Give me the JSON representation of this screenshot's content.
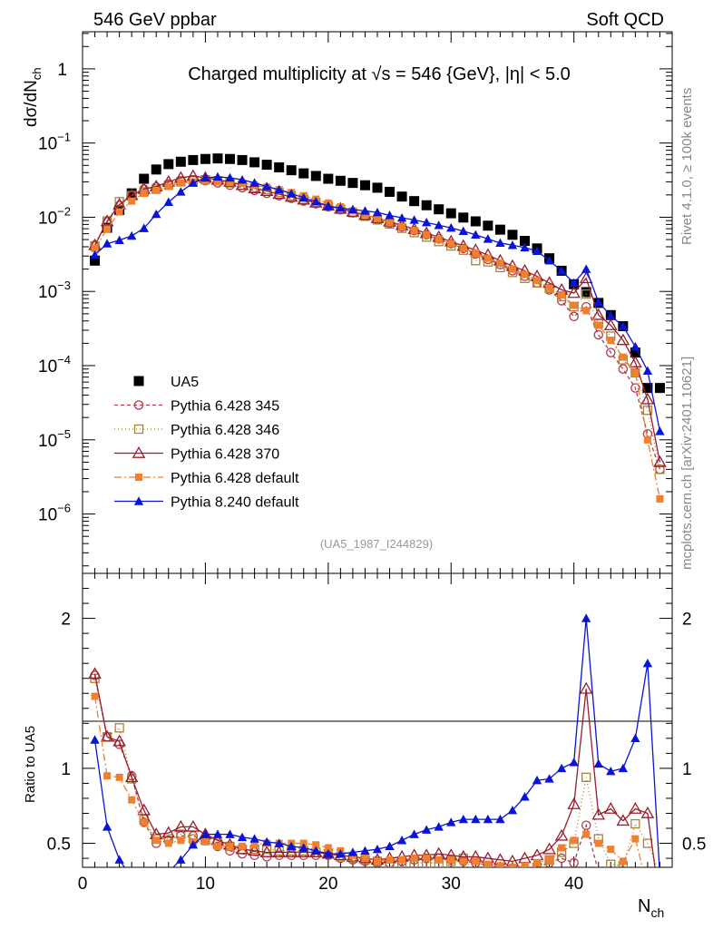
{
  "header": {
    "left": "546 GeV ppbar",
    "right": "Soft QCD"
  },
  "side_labels": {
    "top": "Rivet 4.1.0, ≥ 100k events",
    "bottom": "mcplots.cern.ch [arXiv:2401.10621]"
  },
  "chart_data": {
    "type": "line",
    "title_parts": {
      "prefix": "Charged multiplicity at ",
      "sqrt": "√s",
      "suffix": " = 546 {GeV}, |η| < 5.0"
    },
    "reference": "(UA5_1987_I244829)",
    "xlabel": {
      "main": "N",
      "sub": "ch"
    },
    "ylabel": {
      "main": "dσ/dN",
      "sub": "ch"
    },
    "ratio_ylabel": "Ratio to UA5",
    "xlim": [
      0,
      48
    ],
    "ylim_log": [
      -6.8,
      0.5
    ],
    "ratio_ylim": [
      0.34,
      2.3
    ],
    "x_ticks": [
      0,
      10,
      20,
      30,
      40
    ],
    "y_ticks": [
      {
        "base": "1",
        "exp": ""
      },
      {
        "base": "10",
        "exp": "−1"
      },
      {
        "base": "10",
        "exp": "−2"
      },
      {
        "base": "10",
        "exp": "−3"
      },
      {
        "base": "10",
        "exp": "−4"
      },
      {
        "base": "10",
        "exp": "−5"
      },
      {
        "base": "10",
        "exp": "−6"
      }
    ],
    "ratio_ticks": [
      "2",
      "1",
      "0.5"
    ],
    "x": [
      1,
      2,
      3,
      4,
      5,
      6,
      7,
      8,
      9,
      10,
      11,
      12,
      13,
      14,
      15,
      16,
      17,
      18,
      19,
      20,
      21,
      22,
      23,
      24,
      25,
      26,
      27,
      28,
      29,
      30,
      31,
      32,
      33,
      34,
      35,
      36,
      37,
      38,
      39,
      40,
      41,
      42,
      43,
      44,
      45,
      46,
      47
    ],
    "series": [
      {
        "name": "UA5",
        "color": "#000000",
        "marker": "square-filled",
        "dash": "none",
        "values": [
          0.0026,
          0.0072,
          0.0125,
          0.021,
          0.033,
          0.044,
          0.052,
          0.056,
          0.059,
          0.061,
          0.062,
          0.061,
          0.059,
          0.055,
          0.051,
          0.047,
          0.043,
          0.039,
          0.036,
          0.033,
          0.031,
          0.029,
          0.027,
          0.025,
          0.022,
          0.019,
          0.0165,
          0.0145,
          0.0128,
          0.0113,
          0.0099,
          0.0088,
          0.0077,
          0.0068,
          0.0058,
          0.0048,
          0.0038,
          0.0028,
          0.0019,
          0.00125,
          0.00098,
          0.0007,
          0.00048,
          0.00034,
          0.00015,
          5e-05,
          5e-05
        ]
      },
      {
        "name": "Pythia 6.428 345",
        "color": "#b03a4a",
        "marker": "circle-open",
        "dash": "4,3",
        "values": [
          0.0042,
          0.0087,
          0.0144,
          0.02,
          0.024,
          0.0255,
          0.028,
          0.031,
          0.032,
          0.031,
          0.029,
          0.027,
          0.025,
          0.023,
          0.021,
          0.0195,
          0.018,
          0.0165,
          0.0152,
          0.0138,
          0.0126,
          0.0114,
          0.0103,
          0.0093,
          0.0083,
          0.0074,
          0.0066,
          0.0058,
          0.0051,
          0.0044,
          0.0038,
          0.0032,
          0.0027,
          0.0023,
          0.0019,
          0.0016,
          0.0013,
          0.00105,
          0.00075,
          0.00046,
          0.00062,
          0.00026,
          0.00015,
          9e-05,
          5e-05,
          1.2e-05,
          4e-06
        ]
      },
      {
        "name": "Pythia 6.428 346",
        "color": "#a8823a",
        "marker": "square-open",
        "dash": "1,3",
        "values": [
          0.0041,
          0.0089,
          0.0162,
          0.0195,
          0.022,
          0.024,
          0.027,
          0.03,
          0.031,
          0.032,
          0.031,
          0.029,
          0.027,
          0.025,
          0.0235,
          0.0215,
          0.0195,
          0.0175,
          0.0158,
          0.0142,
          0.0128,
          0.0115,
          0.0103,
          0.0092,
          0.0081,
          0.0071,
          0.0062,
          0.0054,
          0.0047,
          0.0041,
          0.0036,
          0.0026,
          0.0025,
          0.0021,
          0.0018,
          0.0015,
          0.0013,
          0.0011,
          0.00085,
          0.00062,
          0.00092,
          0.00037,
          0.00025,
          0.00012,
          8e-05,
          2.5e-05,
          4e-06
        ]
      },
      {
        "name": "Pythia 6.428 370",
        "color": "#9a1c2a",
        "marker": "triangle-open",
        "dash": "none",
        "values": [
          0.0042,
          0.0088,
          0.0148,
          0.0198,
          0.024,
          0.026,
          0.03,
          0.034,
          0.036,
          0.034,
          0.032,
          0.03,
          0.027,
          0.0245,
          0.0225,
          0.0205,
          0.0188,
          0.0172,
          0.0157,
          0.0143,
          0.013,
          0.0118,
          0.0107,
          0.0097,
          0.0087,
          0.0078,
          0.0069,
          0.0061,
          0.0054,
          0.0047,
          0.0041,
          0.0036,
          0.0031,
          0.0026,
          0.0022,
          0.0019,
          0.0016,
          0.0013,
          0.00105,
          0.00095,
          0.0015,
          0.00048,
          0.00035,
          0.00022,
          0.00011,
          3.5e-05,
          5e-06
        ]
      },
      {
        "name": "Pythia 6.428 default",
        "color": "#f08030",
        "marker": "square-filled-small",
        "dash": "8,3,2,3",
        "values": [
          0.0038,
          0.0069,
          0.0118,
          0.0165,
          0.021,
          0.023,
          0.026,
          0.029,
          0.03,
          0.031,
          0.03,
          0.0295,
          0.0285,
          0.027,
          0.0255,
          0.0235,
          0.0215,
          0.0195,
          0.0175,
          0.0155,
          0.0138,
          0.0122,
          0.0108,
          0.0096,
          0.0085,
          0.0075,
          0.0066,
          0.0058,
          0.005,
          0.0044,
          0.0038,
          0.0033,
          0.0028,
          0.0024,
          0.002,
          0.0017,
          0.0014,
          0.0011,
          0.0009,
          0.00065,
          0.00055,
          0.00035,
          0.00022,
          0.00013,
          8e-05,
          1e-05,
          1.6e-06
        ]
      },
      {
        "name": "Pythia 8.240 default",
        "color": "#0a14d8",
        "marker": "triangle-filled",
        "dash": "none",
        "values": [
          0.0031,
          0.0044,
          0.0049,
          0.0056,
          0.0071,
          0.011,
          0.016,
          0.022,
          0.029,
          0.034,
          0.035,
          0.034,
          0.032,
          0.029,
          0.026,
          0.0235,
          0.0208,
          0.0183,
          0.0162,
          0.0142,
          0.0133,
          0.0127,
          0.0122,
          0.0116,
          0.0106,
          0.0098,
          0.0092,
          0.0085,
          0.0078,
          0.0072,
          0.0065,
          0.0058,
          0.0051,
          0.0045,
          0.0042,
          0.0039,
          0.0035,
          0.0026,
          0.0019,
          0.0013,
          0.002,
          0.00072,
          0.00047,
          0.00034,
          0.00018,
          8.5e-05,
          1.3e-05
        ]
      }
    ],
    "ratios": [
      {
        "name": "Pythia 6.428 345",
        "values": [
          1.62,
          1.21,
          1.16,
          0.95,
          0.64,
          0.5,
          0.52,
          0.55,
          0.55,
          0.52,
          0.48,
          0.45,
          0.43,
          0.42,
          0.41,
          0.42,
          0.42,
          0.42,
          0.42,
          0.42,
          0.4,
          0.39,
          0.38,
          0.37,
          0.37,
          0.38,
          0.39,
          0.4,
          0.4,
          0.39,
          0.38,
          0.37,
          0.35,
          0.34,
          0.33,
          0.33,
          0.34,
          0.37,
          0.4,
          0.37,
          0.62,
          0.31,
          0.3,
          0.3,
          0.3,
          0.3,
          0.3
        ]
      },
      {
        "name": "Pythia 6.428 346",
        "values": [
          1.6,
          1.21,
          1.27,
          0.93,
          0.66,
          0.53,
          0.53,
          0.56,
          0.53,
          0.52,
          0.5,
          0.48,
          0.46,
          0.46,
          0.46,
          0.45,
          0.45,
          0.45,
          0.44,
          0.43,
          0.41,
          0.4,
          0.39,
          0.38,
          0.37,
          0.37,
          0.37,
          0.37,
          0.37,
          0.38,
          0.4,
          0.3,
          0.32,
          0.31,
          0.31,
          0.31,
          0.34,
          0.39,
          0.44,
          0.5,
          0.94,
          0.53,
          0.36,
          0.35,
          0.63,
          0.5,
          0.3
        ]
      },
      {
        "name": "Pythia 6.428 370",
        "values": [
          1.63,
          1.21,
          1.18,
          0.94,
          0.72,
          0.56,
          0.57,
          0.61,
          0.61,
          0.56,
          0.52,
          0.49,
          0.46,
          0.45,
          0.44,
          0.44,
          0.44,
          0.44,
          0.44,
          0.43,
          0.42,
          0.41,
          0.4,
          0.39,
          0.4,
          0.41,
          0.42,
          0.42,
          0.43,
          0.42,
          0.41,
          0.41,
          0.4,
          0.39,
          0.38,
          0.4,
          0.42,
          0.46,
          0.55,
          0.76,
          1.53,
          0.69,
          0.73,
          0.65,
          0.73,
          0.7,
          0.1
        ]
      },
      {
        "name": "Pythia 6.428 default",
        "values": [
          1.48,
          0.95,
          0.94,
          0.79,
          0.64,
          0.52,
          0.5,
          0.52,
          0.51,
          0.51,
          0.48,
          0.48,
          0.48,
          0.49,
          0.5,
          0.5,
          0.5,
          0.5,
          0.49,
          0.47,
          0.45,
          0.42,
          0.4,
          0.38,
          0.39,
          0.39,
          0.4,
          0.4,
          0.39,
          0.39,
          0.38,
          0.38,
          0.36,
          0.35,
          0.34,
          0.35,
          0.37,
          0.39,
          0.47,
          0.52,
          0.56,
          0.5,
          0.46,
          0.38,
          0.53,
          0.2,
          0.03
        ]
      },
      {
        "name": "Pythia 8.240 default",
        "values": [
          1.19,
          0.61,
          0.39,
          0.27,
          0.22,
          0.25,
          0.31,
          0.39,
          0.49,
          0.56,
          0.56,
          0.56,
          0.54,
          0.53,
          0.51,
          0.5,
          0.48,
          0.47,
          0.45,
          0.43,
          0.43,
          0.44,
          0.45,
          0.46,
          0.48,
          0.52,
          0.56,
          0.59,
          0.61,
          0.64,
          0.66,
          0.66,
          0.66,
          0.66,
          0.72,
          0.81,
          0.92,
          0.93,
          1.0,
          1.04,
          2.0,
          1.03,
          0.98,
          1.0,
          1.2,
          1.7,
          0.28
        ]
      }
    ]
  }
}
